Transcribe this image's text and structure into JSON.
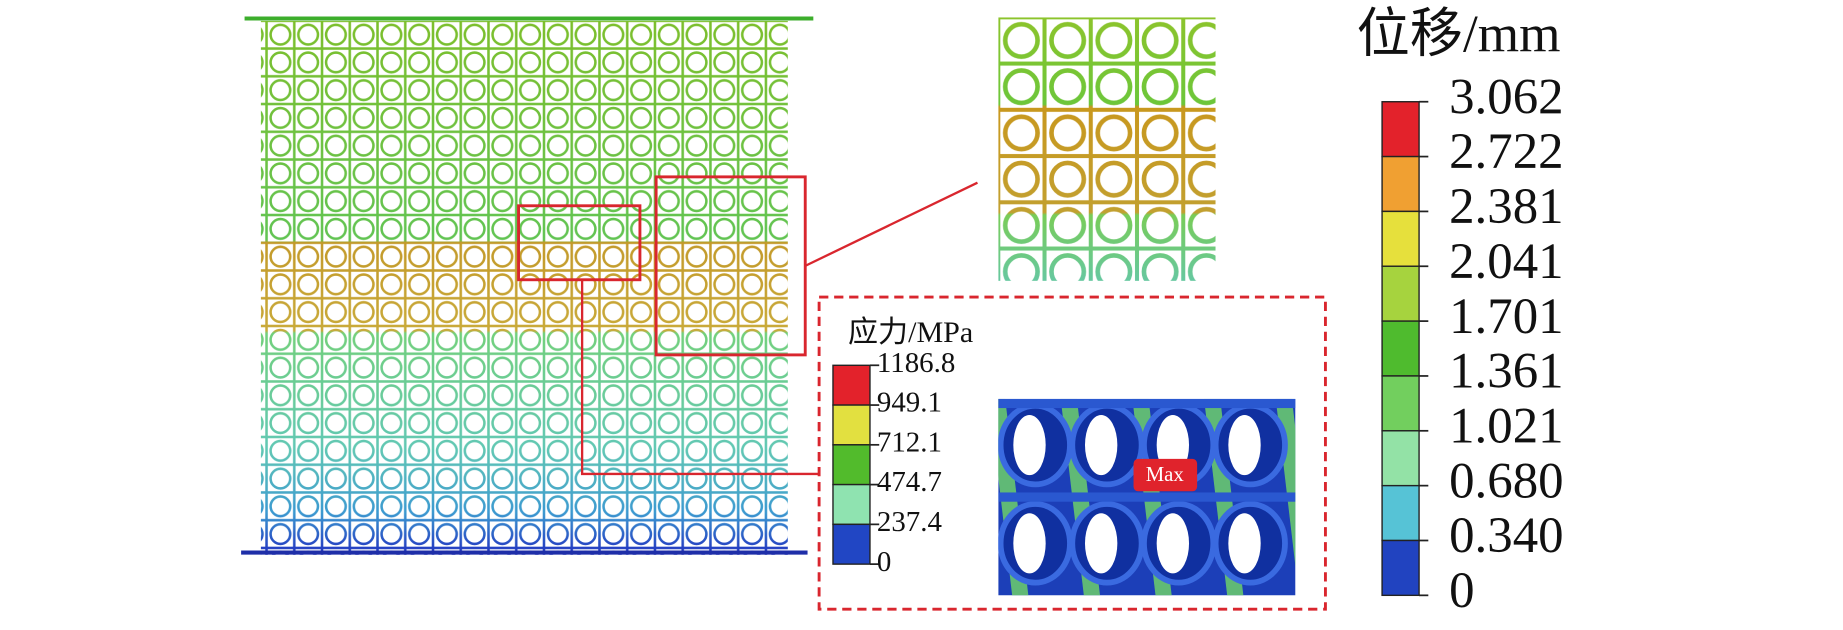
{
  "displacement_legend": {
    "title": "位移/mm",
    "labels": [
      "3.062",
      "2.722",
      "2.381",
      "2.041",
      "1.701",
      "1.361",
      "1.021",
      "0.680",
      "0.340",
      "0"
    ],
    "colors": [
      "#e3222b",
      "#f0a032",
      "#e6e03c",
      "#a6d33e",
      "#4fbb2e",
      "#72cf5e",
      "#93e2a6",
      "#56c3d6",
      "#2143c0"
    ]
  },
  "stress_legend": {
    "title": "应力/MPa",
    "labels": [
      "1186.8",
      "949.1",
      "712.1",
      "474.7",
      "237.4",
      "0"
    ],
    "colors": [
      "#e3222b",
      "#e2e040",
      "#52bb2c",
      "#8fe3b0",
      "#2146c4"
    ]
  },
  "annotation": "Max"
}
